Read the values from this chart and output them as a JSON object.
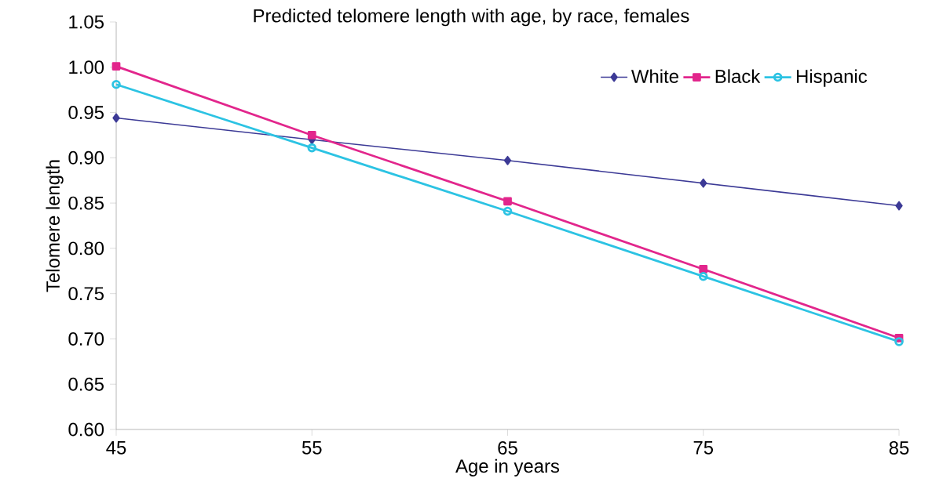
{
  "chart_data": {
    "type": "line",
    "title": "Predicted telomere length with age, by race, females",
    "xlabel": "Age in years",
    "ylabel": "Telomere length",
    "x": [
      45,
      55,
      65,
      75,
      85
    ],
    "series": [
      {
        "name": "White",
        "color": "#3c3a96",
        "values": [
          0.944,
          0.92,
          0.897,
          0.872,
          0.847
        ],
        "marker": "diamond"
      },
      {
        "name": "Black",
        "color": "#e2268c",
        "values": [
          1.001,
          0.925,
          0.852,
          0.777,
          0.701
        ],
        "marker": "square"
      },
      {
        "name": "Hispanic",
        "color": "#2cc3e3",
        "values": [
          0.981,
          0.911,
          0.841,
          0.769,
          0.697
        ],
        "marker": "circle"
      }
    ],
    "xlim": [
      45,
      85
    ],
    "xticks": [
      45,
      55,
      65,
      75,
      85
    ],
    "ylim": [
      0.6,
      1.05
    ],
    "yticks": [
      {
        "value": 0.6,
        "label": "0.60"
      },
      {
        "value": 0.65,
        "label": "0.65"
      },
      {
        "value": 0.7,
        "label": "0.70"
      },
      {
        "value": 0.75,
        "label": "0.75"
      },
      {
        "value": 0.8,
        "label": "0.80"
      },
      {
        "value": 0.85,
        "label": "0.85"
      },
      {
        "value": 0.9,
        "label": "0.90"
      },
      {
        "value": 0.95,
        "label": "0.95"
      },
      {
        "value": 1.0,
        "label": "1.00"
      },
      {
        "value": 1.05,
        "label": "1.05"
      }
    ],
    "grid": false,
    "legend": "top right",
    "line_style": "solid"
  }
}
